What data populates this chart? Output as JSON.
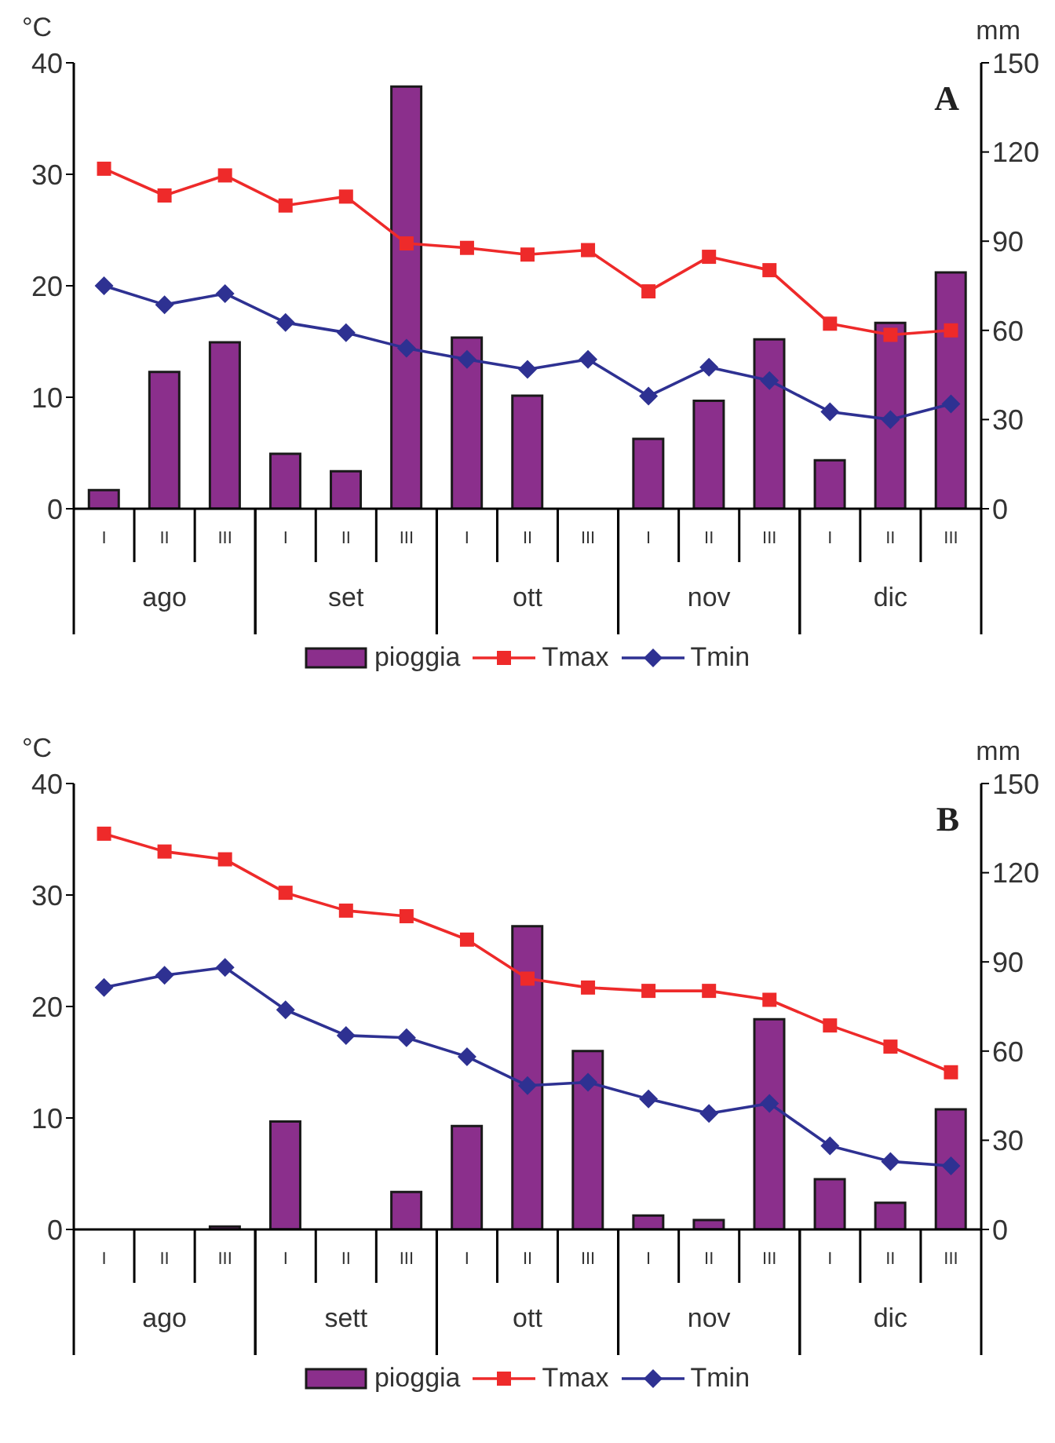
{
  "chart_data": [
    {
      "type": "bar",
      "title": "A",
      "ylabel": "°C",
      "y2label": "mm",
      "categories": [
        "I",
        "II",
        "III",
        "I",
        "II",
        "III",
        "I",
        "II",
        "III",
        "I",
        "II",
        "III",
        "I",
        "II",
        "III"
      ],
      "annotations": [
        "ago",
        "set",
        "ott",
        "nov",
        "dic"
      ],
      "series": [
        {
          "name": "pioggia",
          "axis": "y2",
          "color": "#8b2f8c",
          "values": [
            6.3,
            46,
            56,
            18.5,
            12.6,
            142,
            57.6,
            38,
            0,
            23.5,
            36.3,
            57,
            16.3,
            62.5,
            79.5
          ]
        },
        {
          "name": "Tmax",
          "type": "line",
          "marker": "square",
          "color": "#ee2a2a",
          "values": [
            30.5,
            28.1,
            29.9,
            27.2,
            28,
            23.8,
            23.4,
            22.8,
            23.2,
            19.5,
            22.6,
            21.4,
            16.6,
            15.6,
            16
          ]
        },
        {
          "name": "Tmin",
          "type": "line",
          "marker": "diamond",
          "color": "#2e3192",
          "values": [
            20,
            18.3,
            19.3,
            16.7,
            15.8,
            14.4,
            13.4,
            12.5,
            13.4,
            10.1,
            12.7,
            11.5,
            8.7,
            8,
            9.4
          ]
        }
      ],
      "ylim": [
        0,
        40
      ],
      "yticks": [
        0,
        10,
        20,
        30,
        40
      ],
      "y2lim": [
        0,
        150
      ],
      "y2ticks": [
        0,
        30,
        60,
        90,
        120,
        150
      ],
      "grid": false,
      "legend": "bottom",
      "line_style": "solid"
    },
    {
      "type": "bar",
      "title": "B",
      "ylabel": "°C",
      "y2label": "mm",
      "categories": [
        "I",
        "II",
        "III",
        "I",
        "II",
        "III",
        "I",
        "II",
        "III",
        "I",
        "II",
        "III",
        "I",
        "II",
        "III"
      ],
      "annotations": [
        "ago",
        "sett",
        "ott",
        "nov",
        "dic"
      ],
      "series": [
        {
          "name": "pioggia",
          "axis": "y2",
          "color": "#8b2f8c",
          "values": [
            0,
            0,
            1,
            36.3,
            0,
            12.6,
            34.8,
            102,
            60,
            4.7,
            3.2,
            70.7,
            16.9,
            9,
            40.4
          ]
        },
        {
          "name": "Tmax",
          "type": "line",
          "marker": "square",
          "color": "#ee2a2a",
          "values": [
            35.5,
            33.9,
            33.2,
            30.2,
            28.6,
            28.1,
            26,
            22.5,
            21.7,
            21.4,
            21.4,
            20.6,
            18.3,
            16.4,
            14.1
          ]
        },
        {
          "name": "Tmin",
          "type": "line",
          "marker": "diamond",
          "color": "#2e3192",
          "values": [
            21.7,
            22.8,
            23.5,
            19.7,
            17.4,
            17.2,
            15.5,
            12.9,
            13.2,
            11.7,
            10.4,
            11.3,
            7.5,
            6.1,
            5.7
          ]
        }
      ],
      "ylim": [
        0,
        40
      ],
      "yticks": [
        0,
        10,
        20,
        30,
        40
      ],
      "y2lim": [
        0,
        150
      ],
      "y2ticks": [
        0,
        30,
        60,
        90,
        120,
        150
      ],
      "grid": false,
      "legend": "bottom",
      "line_style": "solid"
    }
  ]
}
